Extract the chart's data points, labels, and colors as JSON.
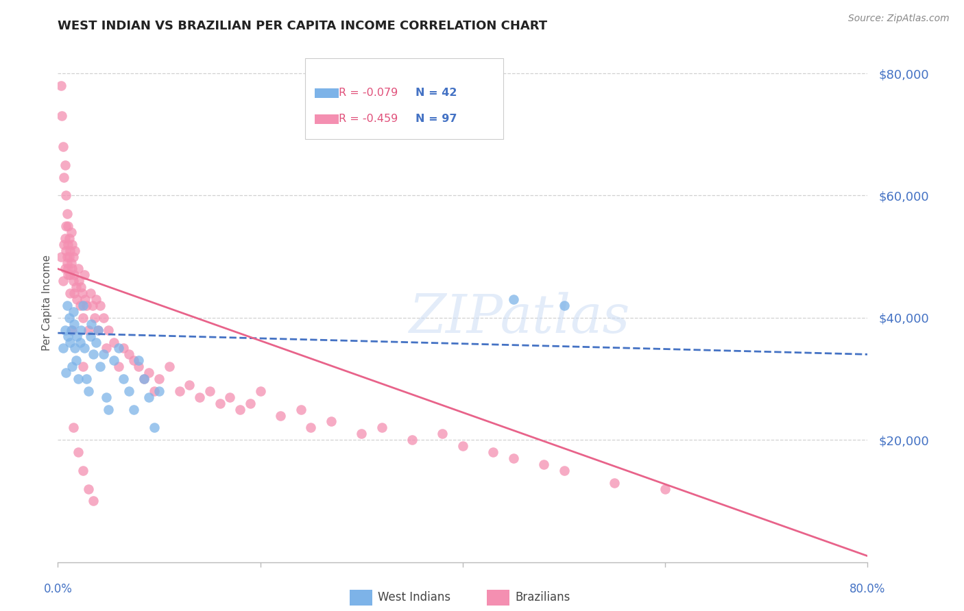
{
  "title": "WEST INDIAN VS BRAZILIAN PER CAPITA INCOME CORRELATION CHART",
  "source": "Source: ZipAtlas.com",
  "ylabel": "Per Capita Income",
  "ytick_labels": [
    "$20,000",
    "$40,000",
    "$60,000",
    "$80,000"
  ],
  "ytick_values": [
    20000,
    40000,
    60000,
    80000
  ],
  "ymin": 0,
  "ymax": 85000,
  "xmin": 0.0,
  "xmax": 0.8,
  "watermark": "ZIPatlas",
  "blue_color": "#7db3e8",
  "pink_color": "#f48fb1",
  "blue_line_color": "#4472c4",
  "pink_line_color": "#e8638a",
  "west_indians_label": "West Indians",
  "brazilians_label": "Brazilians",
  "legend_r1": "R = -0.079",
  "legend_n1": "N = 42",
  "legend_r2": "R = -0.459",
  "legend_n2": "N = 97",
  "blue_scatter_x": [
    0.005,
    0.007,
    0.008,
    0.009,
    0.01,
    0.011,
    0.012,
    0.013,
    0.014,
    0.015,
    0.016,
    0.017,
    0.018,
    0.019,
    0.02,
    0.022,
    0.023,
    0.025,
    0.026,
    0.028,
    0.03,
    0.032,
    0.033,
    0.035,
    0.038,
    0.04,
    0.042,
    0.045,
    0.048,
    0.05,
    0.055,
    0.06,
    0.065,
    0.07,
    0.075,
    0.08,
    0.085,
    0.09,
    0.095,
    0.1,
    0.45,
    0.5
  ],
  "blue_scatter_y": [
    35000,
    38000,
    31000,
    42000,
    37000,
    40000,
    36000,
    38000,
    32000,
    41000,
    39000,
    35000,
    33000,
    37000,
    30000,
    36000,
    38000,
    42000,
    35000,
    30000,
    28000,
    37000,
    39000,
    34000,
    36000,
    38000,
    32000,
    34000,
    27000,
    25000,
    33000,
    35000,
    30000,
    28000,
    25000,
    33000,
    30000,
    27000,
    22000,
    28000,
    43000,
    42000
  ],
  "pink_scatter_x": [
    0.003,
    0.005,
    0.006,
    0.007,
    0.007,
    0.008,
    0.008,
    0.009,
    0.009,
    0.01,
    0.01,
    0.011,
    0.011,
    0.012,
    0.012,
    0.013,
    0.013,
    0.014,
    0.014,
    0.015,
    0.015,
    0.016,
    0.016,
    0.017,
    0.018,
    0.019,
    0.02,
    0.021,
    0.022,
    0.023,
    0.024,
    0.025,
    0.026,
    0.027,
    0.028,
    0.03,
    0.032,
    0.034,
    0.036,
    0.038,
    0.04,
    0.042,
    0.045,
    0.048,
    0.05,
    0.055,
    0.06,
    0.065,
    0.07,
    0.075,
    0.08,
    0.085,
    0.09,
    0.095,
    0.1,
    0.11,
    0.12,
    0.13,
    0.14,
    0.15,
    0.16,
    0.17,
    0.18,
    0.19,
    0.2,
    0.22,
    0.24,
    0.25,
    0.27,
    0.3,
    0.32,
    0.35,
    0.38,
    0.4,
    0.43,
    0.45,
    0.48,
    0.5,
    0.55,
    0.6,
    0.003,
    0.004,
    0.005,
    0.006,
    0.007,
    0.008,
    0.009,
    0.01,
    0.015,
    0.02,
    0.025,
    0.03,
    0.035,
    0.01,
    0.012,
    0.014,
    0.025
  ],
  "pink_scatter_y": [
    50000,
    46000,
    52000,
    48000,
    53000,
    51000,
    55000,
    49000,
    50000,
    52000,
    48000,
    53000,
    50000,
    47000,
    51000,
    49000,
    54000,
    48000,
    52000,
    50000,
    46000,
    44000,
    47000,
    51000,
    45000,
    43000,
    48000,
    46000,
    42000,
    45000,
    44000,
    40000,
    47000,
    43000,
    42000,
    38000,
    44000,
    42000,
    40000,
    43000,
    38000,
    42000,
    40000,
    35000,
    38000,
    36000,
    32000,
    35000,
    34000,
    33000,
    32000,
    30000,
    31000,
    28000,
    30000,
    32000,
    28000,
    29000,
    27000,
    28000,
    26000,
    27000,
    25000,
    26000,
    28000,
    24000,
    25000,
    22000,
    23000,
    21000,
    22000,
    20000,
    21000,
    19000,
    18000,
    17000,
    16000,
    15000,
    13000,
    12000,
    78000,
    73000,
    68000,
    63000,
    65000,
    60000,
    57000,
    55000,
    22000,
    18000,
    15000,
    12000,
    10000,
    47000,
    44000,
    38000,
    32000
  ],
  "blue_line_x": [
    0.0,
    0.8
  ],
  "blue_line_y": [
    37500,
    34000
  ],
  "pink_line_x": [
    0.0,
    0.8
  ],
  "pink_line_y": [
    48000,
    1000
  ]
}
